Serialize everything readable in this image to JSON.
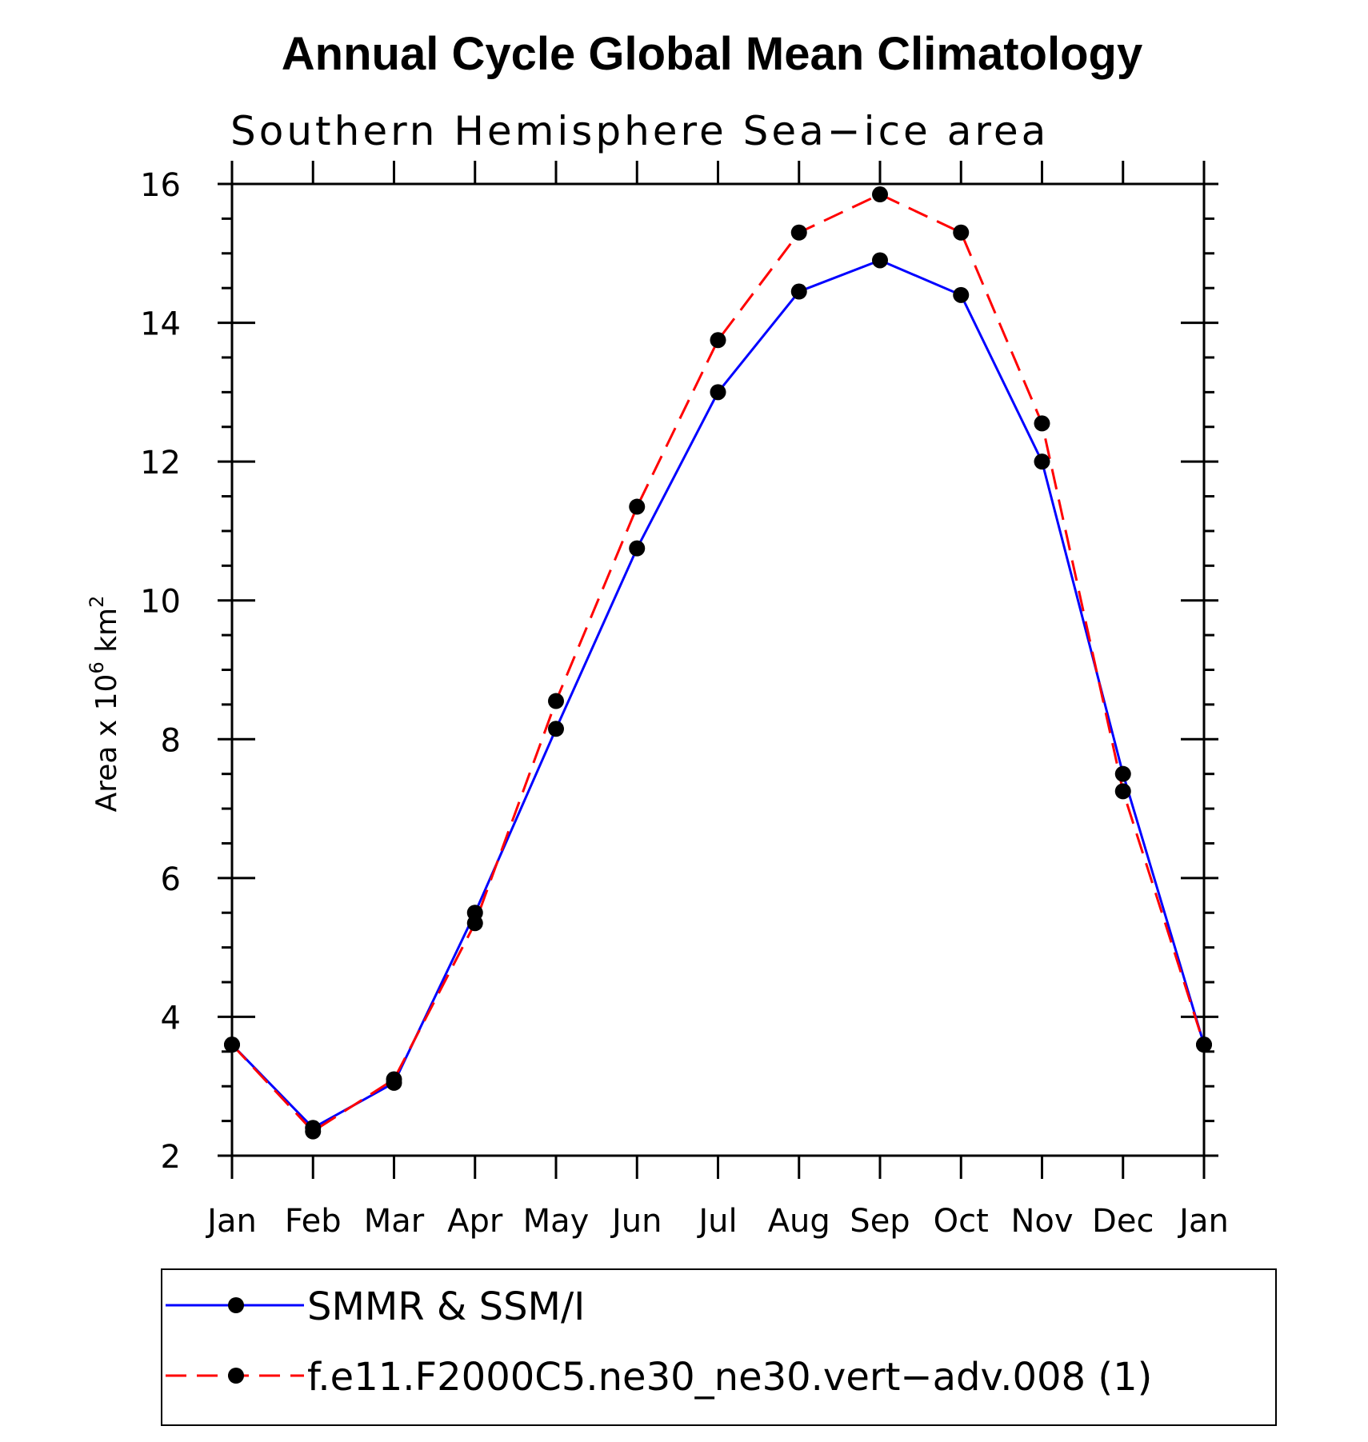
{
  "chart_data": {
    "type": "line",
    "title": "Annual Cycle Global Mean Climatology",
    "subtitle": "Southern Hemisphere Sea−ice area",
    "ylabel": "Area x 10",
    "ylabel_superscript_1": "6",
    "ylabel_unit": " km",
    "ylabel_superscript_2": "2",
    "categories": [
      "Jan",
      "Feb",
      "Mar",
      "Apr",
      "May",
      "Jun",
      "Jul",
      "Aug",
      "Sep",
      "Oct",
      "Nov",
      "Dec",
      "Jan"
    ],
    "ylim": [
      2,
      16
    ],
    "yticks": [
      "2",
      "4",
      "6",
      "8",
      "10",
      "12",
      "14",
      "16"
    ],
    "grid": false,
    "legend_position": "bottom",
    "series": [
      {
        "name": "SMMR & SSM/I",
        "color": "#0000ff",
        "dash": "solid",
        "values": [
          3.6,
          2.4,
          3.05,
          5.5,
          8.15,
          10.75,
          13.0,
          14.45,
          14.9,
          14.4,
          12.0,
          7.5,
          3.6
        ]
      },
      {
        "name": "f.e11.F2000C5.ne30_ne30.vert−adv.008 (1)",
        "color": "#ff0000",
        "dash": "dashed",
        "values": [
          3.6,
          2.35,
          3.1,
          5.35,
          8.55,
          11.35,
          13.75,
          15.3,
          15.85,
          15.3,
          12.55,
          7.25,
          3.6
        ]
      }
    ]
  }
}
